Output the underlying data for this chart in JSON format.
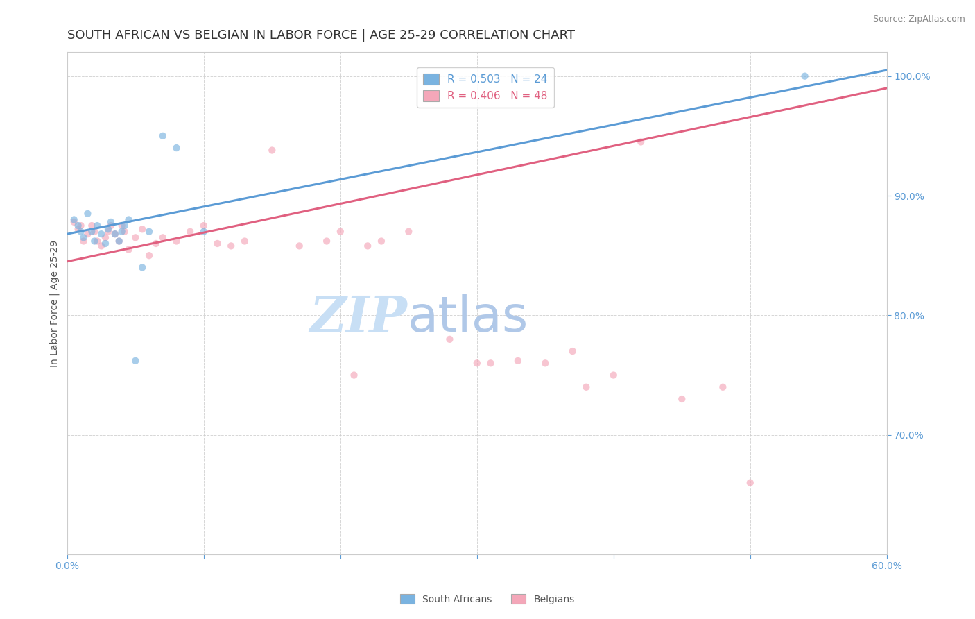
{
  "title": "SOUTH AFRICAN VS BELGIAN IN LABOR FORCE | AGE 25-29 CORRELATION CHART",
  "source_text": "Source: ZipAtlas.com",
  "ylabel": "In Labor Force | Age 25-29",
  "xlim": [
    0.0,
    0.6
  ],
  "ylim": [
    0.6,
    1.02
  ],
  "yticks": [
    0.7,
    0.8,
    0.9,
    1.0
  ],
  "xticks": [
    0.0,
    0.1,
    0.2,
    0.3,
    0.4,
    0.5,
    0.6
  ],
  "xtick_labels": [
    "0.0%",
    "",
    "",
    "",
    "",
    "",
    "60.0%"
  ],
  "ytick_labels": [
    "70.0%",
    "80.0%",
    "90.0%",
    "100.0%"
  ],
  "south_african_x": [
    0.005,
    0.008,
    0.01,
    0.012,
    0.015,
    0.018,
    0.02,
    0.022,
    0.025,
    0.028,
    0.03,
    0.032,
    0.035,
    0.038,
    0.04,
    0.042,
    0.045,
    0.05,
    0.055,
    0.06,
    0.07,
    0.08,
    0.54,
    0.1
  ],
  "south_african_y": [
    0.88,
    0.875,
    0.87,
    0.865,
    0.885,
    0.87,
    0.862,
    0.875,
    0.868,
    0.86,
    0.872,
    0.878,
    0.868,
    0.862,
    0.87,
    0.875,
    0.88,
    0.762,
    0.84,
    0.87,
    0.95,
    0.94,
    1.0,
    0.87
  ],
  "belgian_x": [
    0.005,
    0.008,
    0.01,
    0.012,
    0.015,
    0.018,
    0.02,
    0.022,
    0.025,
    0.028,
    0.03,
    0.032,
    0.035,
    0.038,
    0.04,
    0.042,
    0.045,
    0.05,
    0.055,
    0.06,
    0.065,
    0.07,
    0.08,
    0.09,
    0.1,
    0.11,
    0.12,
    0.13,
    0.15,
    0.17,
    0.19,
    0.2,
    0.21,
    0.22,
    0.23,
    0.25,
    0.28,
    0.3,
    0.31,
    0.33,
    0.35,
    0.37,
    0.38,
    0.4,
    0.42,
    0.45,
    0.48,
    0.5
  ],
  "belgian_y": [
    0.878,
    0.872,
    0.875,
    0.862,
    0.868,
    0.875,
    0.87,
    0.862,
    0.858,
    0.865,
    0.87,
    0.875,
    0.868,
    0.862,
    0.875,
    0.87,
    0.855,
    0.865,
    0.872,
    0.85,
    0.86,
    0.865,
    0.862,
    0.87,
    0.875,
    0.86,
    0.858,
    0.862,
    0.938,
    0.858,
    0.862,
    0.87,
    0.75,
    0.858,
    0.862,
    0.87,
    0.78,
    0.76,
    0.76,
    0.762,
    0.76,
    0.77,
    0.74,
    0.75,
    0.945,
    0.73,
    0.74,
    0.66
  ],
  "sa_color": "#7ab3e0",
  "be_color": "#f4a7b9",
  "sa_line_color": "#5b9bd5",
  "be_line_color": "#e06080",
  "sa_R": 0.503,
  "sa_N": 24,
  "be_R": 0.406,
  "be_N": 48,
  "sa_line_x0": 0.0,
  "sa_line_y0": 0.868,
  "sa_line_x1": 0.6,
  "sa_line_y1": 1.005,
  "be_line_x0": 0.0,
  "be_line_y0": 0.845,
  "be_line_x1": 0.6,
  "be_line_y1": 0.99,
  "watermark_zip": "ZIP",
  "watermark_atlas": "atlas",
  "watermark_color_zip": "#c8dff5",
  "watermark_color_atlas": "#b0c8e8",
  "grid_color": "#cccccc",
  "axis_color": "#5b9bd5",
  "marker_size": 55,
  "marker_alpha": 0.65,
  "title_fontsize": 13,
  "label_fontsize": 10,
  "tick_fontsize": 10,
  "legend_fontsize": 11,
  "source_fontsize": 9
}
